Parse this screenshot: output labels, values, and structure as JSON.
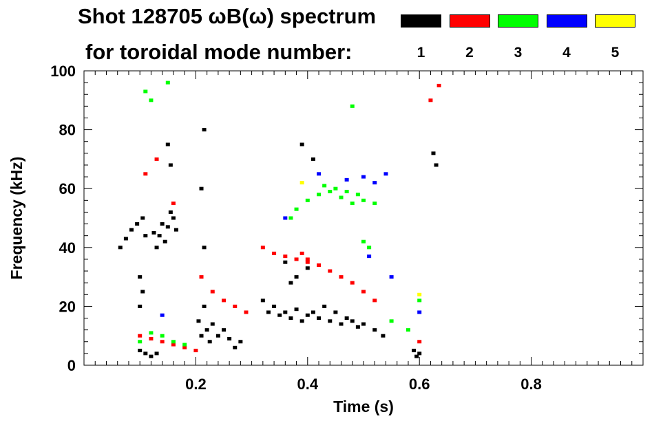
{
  "title_line1": "Shot 128705 ωB(ω) spectrum",
  "title_line2": "for toroidal mode number:",
  "legend": [
    {
      "label": "1",
      "color": "#000000"
    },
    {
      "label": "2",
      "color": "#ff0000"
    },
    {
      "label": "3",
      "color": "#00ff00"
    },
    {
      "label": "4",
      "color": "#0000ff"
    },
    {
      "label": "5",
      "color": "#ffff00"
    }
  ],
  "chart_data": {
    "type": "scatter",
    "title": "Shot 128705 ωB(ω) spectrum",
    "xlabel": "Time (s)",
    "ylabel": "Frequency (kHz)",
    "xlim": [
      0.0,
      1.0
    ],
    "ylim": [
      0,
      100
    ],
    "x_ticks": [
      0.2,
      0.4,
      0.6,
      0.8
    ],
    "x_tick_labels": [
      "0.2",
      "0.4",
      "0.6",
      "0.8"
    ],
    "y_ticks": [
      0,
      20,
      40,
      60,
      80,
      100
    ],
    "y_tick_labels": [
      "0",
      "20",
      "40",
      "60",
      "80",
      "100"
    ],
    "grid": false,
    "series": [
      {
        "name": "1",
        "color": "#000000",
        "values": [
          [
            0.065,
            40
          ],
          [
            0.075,
            43
          ],
          [
            0.085,
            46
          ],
          [
            0.095,
            48
          ],
          [
            0.105,
            50
          ],
          [
            0.11,
            44
          ],
          [
            0.1,
            30
          ],
          [
            0.105,
            25
          ],
          [
            0.1,
            20
          ],
          [
            0.125,
            45
          ],
          [
            0.13,
            40
          ],
          [
            0.135,
            44
          ],
          [
            0.14,
            48
          ],
          [
            0.145,
            42
          ],
          [
            0.15,
            47
          ],
          [
            0.155,
            52
          ],
          [
            0.16,
            50
          ],
          [
            0.165,
            46
          ],
          [
            0.1,
            5
          ],
          [
            0.11,
            4
          ],
          [
            0.12,
            3
          ],
          [
            0.13,
            4
          ],
          [
            0.15,
            75
          ],
          [
            0.155,
            68
          ],
          [
            0.205,
            15
          ],
          [
            0.21,
            10
          ],
          [
            0.215,
            20
          ],
          [
            0.22,
            12
          ],
          [
            0.225,
            8
          ],
          [
            0.23,
            14
          ],
          [
            0.24,
            10
          ],
          [
            0.25,
            12
          ],
          [
            0.26,
            9
          ],
          [
            0.27,
            6
          ],
          [
            0.28,
            8
          ],
          [
            0.215,
            80
          ],
          [
            0.21,
            60
          ],
          [
            0.215,
            40
          ],
          [
            0.32,
            22
          ],
          [
            0.33,
            18
          ],
          [
            0.34,
            20
          ],
          [
            0.35,
            17
          ],
          [
            0.36,
            18
          ],
          [
            0.37,
            16
          ],
          [
            0.38,
            19
          ],
          [
            0.39,
            15
          ],
          [
            0.4,
            17
          ],
          [
            0.41,
            18
          ],
          [
            0.42,
            16
          ],
          [
            0.43,
            20
          ],
          [
            0.44,
            15
          ],
          [
            0.45,
            18
          ],
          [
            0.46,
            14
          ],
          [
            0.47,
            16
          ],
          [
            0.48,
            15
          ],
          [
            0.49,
            13
          ],
          [
            0.5,
            14
          ],
          [
            0.37,
            28
          ],
          [
            0.38,
            30
          ],
          [
            0.36,
            35
          ],
          [
            0.4,
            33
          ],
          [
            0.39,
            75
          ],
          [
            0.41,
            70
          ],
          [
            0.52,
            12
          ],
          [
            0.535,
            10
          ],
          [
            0.59,
            5
          ],
          [
            0.595,
            3
          ],
          [
            0.6,
            4
          ],
          [
            0.625,
            72
          ],
          [
            0.63,
            68
          ]
        ]
      },
      {
        "name": "2",
        "color": "#ff0000",
        "values": [
          [
            0.1,
            10
          ],
          [
            0.12,
            9
          ],
          [
            0.14,
            8
          ],
          [
            0.16,
            7
          ],
          [
            0.18,
            6
          ],
          [
            0.2,
            5
          ],
          [
            0.13,
            70
          ],
          [
            0.16,
            55
          ],
          [
            0.11,
            65
          ],
          [
            0.21,
            30
          ],
          [
            0.23,
            25
          ],
          [
            0.25,
            22
          ],
          [
            0.27,
            20
          ],
          [
            0.29,
            18
          ],
          [
            0.32,
            40
          ],
          [
            0.34,
            38
          ],
          [
            0.36,
            37
          ],
          [
            0.38,
            36
          ],
          [
            0.4,
            36
          ],
          [
            0.42,
            34
          ],
          [
            0.44,
            32
          ],
          [
            0.46,
            30
          ],
          [
            0.48,
            28
          ],
          [
            0.5,
            25
          ],
          [
            0.52,
            22
          ],
          [
            0.39,
            38
          ],
          [
            0.4,
            35
          ],
          [
            0.6,
            8
          ],
          [
            0.62,
            90
          ],
          [
            0.635,
            95
          ]
        ]
      },
      {
        "name": "3",
        "color": "#00ff00",
        "values": [
          [
            0.1,
            8
          ],
          [
            0.12,
            11
          ],
          [
            0.14,
            10
          ],
          [
            0.16,
            8
          ],
          [
            0.18,
            7
          ],
          [
            0.11,
            93
          ],
          [
            0.15,
            96
          ],
          [
            0.12,
            90
          ],
          [
            0.37,
            50
          ],
          [
            0.38,
            53
          ],
          [
            0.4,
            56
          ],
          [
            0.42,
            58
          ],
          [
            0.44,
            59
          ],
          [
            0.46,
            57
          ],
          [
            0.48,
            55
          ],
          [
            0.5,
            56
          ],
          [
            0.52,
            55
          ],
          [
            0.43,
            61
          ],
          [
            0.45,
            60
          ],
          [
            0.47,
            59
          ],
          [
            0.49,
            58
          ],
          [
            0.5,
            42
          ],
          [
            0.51,
            40
          ],
          [
            0.48,
            88
          ],
          [
            0.55,
            15
          ],
          [
            0.58,
            12
          ],
          [
            0.6,
            22
          ]
        ]
      },
      {
        "name": "4",
        "color": "#0000ff",
        "values": [
          [
            0.14,
            17
          ],
          [
            0.36,
            50
          ],
          [
            0.42,
            65
          ],
          [
            0.47,
            63
          ],
          [
            0.5,
            64
          ],
          [
            0.52,
            62
          ],
          [
            0.54,
            65
          ],
          [
            0.55,
            30
          ],
          [
            0.6,
            18
          ],
          [
            0.51,
            37
          ]
        ]
      },
      {
        "name": "5",
        "color": "#ffff00",
        "values": [
          [
            0.39,
            62
          ],
          [
            0.6,
            24
          ]
        ]
      }
    ]
  }
}
